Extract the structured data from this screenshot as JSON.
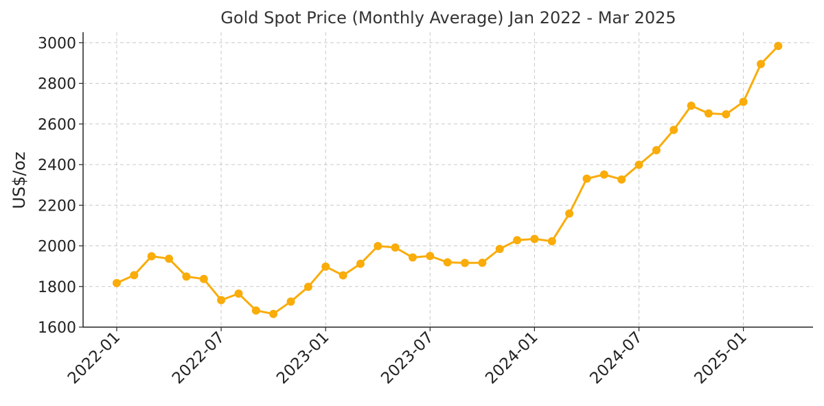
{
  "chart_data": {
    "type": "line",
    "title": "Gold Spot Price (Monthly Average) Jan 2022 - Mar 2025",
    "xlabel": "",
    "ylabel": "US$/oz",
    "ylim": [
      1600,
      3050
    ],
    "yticks": [
      1600,
      1800,
      2000,
      2200,
      2400,
      2600,
      2800,
      3000
    ],
    "xticks": [
      "2022-01",
      "2022-07",
      "2023-01",
      "2023-07",
      "2024-01",
      "2024-07",
      "2025-01"
    ],
    "grid": true,
    "color": "#F9AC0A",
    "x": [
      "2022-01",
      "2022-02",
      "2022-03",
      "2022-04",
      "2022-05",
      "2022-06",
      "2022-07",
      "2022-08",
      "2022-09",
      "2022-10",
      "2022-11",
      "2022-12",
      "2023-01",
      "2023-02",
      "2023-03",
      "2023-04",
      "2023-05",
      "2023-06",
      "2023-07",
      "2023-08",
      "2023-09",
      "2023-10",
      "2023-11",
      "2023-12",
      "2024-01",
      "2024-02",
      "2024-03",
      "2024-04",
      "2024-05",
      "2024-06",
      "2024-07",
      "2024-08",
      "2024-09",
      "2024-10",
      "2024-11",
      "2024-12",
      "2025-01",
      "2025-02",
      "2025-03"
    ],
    "series": [
      {
        "values": [
          1817,
          1856,
          1949,
          1937,
          1849,
          1837,
          1733,
          1765,
          1682,
          1665,
          1726,
          1798,
          1898,
          1855,
          1912,
          1999,
          1992,
          1943,
          1950,
          1919,
          1916,
          1917,
          1985,
          2028,
          2034,
          2023,
          2159,
          2331,
          2351,
          2327,
          2399,
          2471,
          2571,
          2690,
          2652,
          2648,
          2709,
          2895,
          2984
        ]
      }
    ]
  }
}
